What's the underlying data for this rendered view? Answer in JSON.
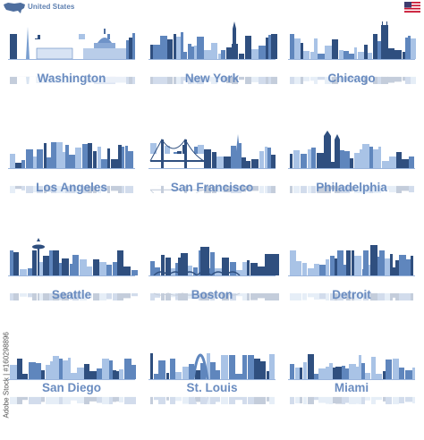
{
  "header": {
    "country": "United States",
    "map_icon": "usa-map-icon",
    "flag_icon": "us-flag-icon"
  },
  "colors": {
    "skyline_dark": "#2f4f7f",
    "skyline_mid": "#5f86bd",
    "skyline_light": "#a9c3e6",
    "label": "#6a8cc0"
  },
  "cities": [
    {
      "name": "Washington",
      "skyline": "washington"
    },
    {
      "name": "New York",
      "skyline": "new-york"
    },
    {
      "name": "Chicago",
      "skyline": "chicago"
    },
    {
      "name": "Los Angeles",
      "skyline": "los-angeles"
    },
    {
      "name": "San Francisco",
      "skyline": "san-francisco"
    },
    {
      "name": "Philadelphia",
      "skyline": "philadelphia"
    },
    {
      "name": "Seattle",
      "skyline": "seattle"
    },
    {
      "name": "Boston",
      "skyline": "boston"
    },
    {
      "name": "Detroit",
      "skyline": "detroit"
    },
    {
      "name": "San Diego",
      "skyline": "san-diego"
    },
    {
      "name": "St. Louis",
      "skyline": "st-louis"
    },
    {
      "name": "Miami",
      "skyline": "miami"
    }
  ],
  "watermark": "Adobe Stock | #160298896"
}
